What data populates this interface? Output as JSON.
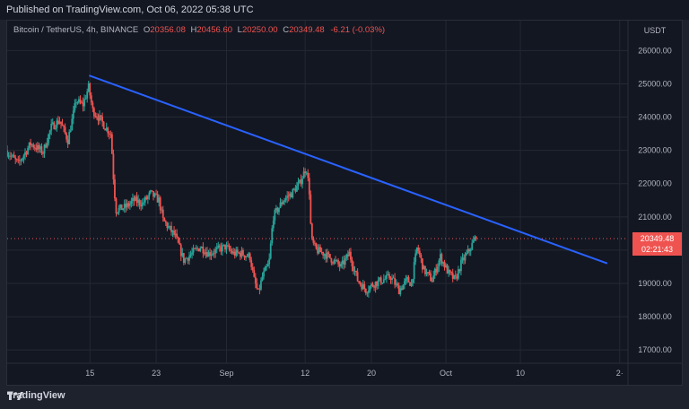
{
  "header": {
    "published": "Published on TradingView.com, Oct 06, 2022 05:38 UTC"
  },
  "legend": {
    "symbol": "Bitcoin / TetherUS, 4h, BINANCE",
    "open_label": "O",
    "open": "20356.08",
    "high_label": "H",
    "high": "20456.60",
    "low_label": "L",
    "low": "20250.00",
    "close_label": "C",
    "close": "20349.48",
    "change": "-6.21 (-0.03%)"
  },
  "brand": {
    "name": "TradingView",
    "logo_icon": "tradingview-logo-icon"
  },
  "colors": {
    "up": "#26a69a",
    "down": "#ef5350",
    "trendline": "#2962ff",
    "grid": "#242833"
  },
  "chart_data": {
    "type": "candlestick",
    "currency_label": "USDT",
    "ylim": [
      16600,
      26900
    ],
    "y_ticks": [
      {
        "value": 26000,
        "label": "26000.00"
      },
      {
        "value": 25000,
        "label": "25000.00"
      },
      {
        "value": 24000,
        "label": "24000.00"
      },
      {
        "value": 23000,
        "label": "23000.00"
      },
      {
        "value": 22000,
        "label": "22000.00"
      },
      {
        "value": 21000,
        "label": "21000.00"
      },
      {
        "value": 20000,
        "label": "20000.00"
      },
      {
        "value": 19000,
        "label": "19000.00"
      },
      {
        "value": 18000,
        "label": "18000.00"
      },
      {
        "value": 17000,
        "label": "17000.00"
      }
    ],
    "x_ticks": [
      {
        "day": 15,
        "label": "15"
      },
      {
        "day": 23,
        "label": "23"
      },
      {
        "day": 31.5,
        "label": "Sep"
      },
      {
        "day": 41,
        "label": "12"
      },
      {
        "day": 49,
        "label": "20"
      },
      {
        "day": 58,
        "label": "Oct"
      },
      {
        "day": 67,
        "label": "10"
      },
      {
        "day": 79,
        "label": "2·"
      }
    ],
    "x_range_days": [
      5,
      80
    ],
    "last_price": {
      "value": 20349.48,
      "label": "20349.48",
      "countdown": "02:21:43"
    },
    "trendline": {
      "start": {
        "day": 14.9,
        "price": 25250
      },
      "end": {
        "day": 77.5,
        "price": 19600
      }
    },
    "price_path": [
      [
        5,
        23000
      ],
      [
        6.5,
        22600
      ],
      [
        8,
        23200
      ],
      [
        9.5,
        22950
      ],
      [
        10.5,
        23700
      ],
      [
        11.5,
        23900
      ],
      [
        12.5,
        23300
      ],
      [
        13.5,
        24500
      ],
      [
        14.3,
        24350
      ],
      [
        15,
        24900
      ],
      [
        15.5,
        24200
      ],
      [
        16.5,
        23900
      ],
      [
        17,
        23700
      ],
      [
        17.7,
        23500
      ],
      [
        18,
        22200
      ],
      [
        18.3,
        21200
      ],
      [
        19.5,
        21300
      ],
      [
        20.5,
        21500
      ],
      [
        21.5,
        21400
      ],
      [
        22.5,
        21700
      ],
      [
        23.5,
        21500
      ],
      [
        24,
        20900
      ],
      [
        25.5,
        20400
      ],
      [
        26.5,
        19700
      ],
      [
        27.5,
        19900
      ],
      [
        28.5,
        20100
      ],
      [
        29.5,
        19900
      ],
      [
        30.5,
        20000
      ],
      [
        31.5,
        20100
      ],
      [
        32.5,
        19900
      ],
      [
        33.5,
        19900
      ],
      [
        34.5,
        19800
      ],
      [
        35,
        19100
      ],
      [
        35.5,
        18700
      ],
      [
        36,
        19200
      ],
      [
        36.8,
        19600
      ],
      [
        37.3,
        21000
      ],
      [
        38.5,
        21500
      ],
      [
        39.5,
        21700
      ],
      [
        40.5,
        22000
      ],
      [
        41.3,
        22500
      ],
      [
        41.7,
        21700
      ],
      [
        41.9,
        20300
      ],
      [
        42.5,
        20000
      ],
      [
        43.5,
        19900
      ],
      [
        44.5,
        19700
      ],
      [
        45.5,
        19500
      ],
      [
        46.5,
        19900
      ],
      [
        47.5,
        19100
      ],
      [
        48.5,
        18800
      ],
      [
        49.5,
        19000
      ],
      [
        50.5,
        19100
      ],
      [
        51.5,
        19200
      ],
      [
        52.5,
        18800
      ],
      [
        53.5,
        19100
      ],
      [
        54,
        19000
      ],
      [
        54.7,
        20100
      ],
      [
        55.5,
        19400
      ],
      [
        56.5,
        19100
      ],
      [
        57.5,
        19800
      ],
      [
        58.5,
        19300
      ],
      [
        59.3,
        19100
      ],
      [
        60,
        19600
      ],
      [
        61,
        20000
      ],
      [
        61.7,
        20349
      ]
    ]
  }
}
